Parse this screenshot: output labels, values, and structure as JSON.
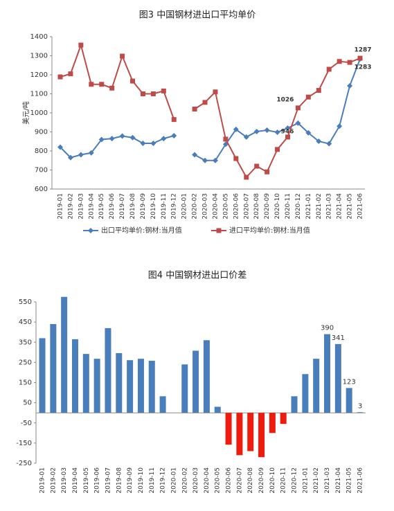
{
  "chart_data": [
    {
      "type": "line",
      "title": "图3 中国钢材进出口平均单价",
      "y_label": "美元/吨",
      "categories": [
        "2019-01",
        "2019-02",
        "2019-03",
        "2019-04",
        "2019-05",
        "2019-06",
        "2019-07",
        "2019-08",
        "2019-09",
        "2019-10",
        "2019-11",
        "2019-12",
        "2020-01",
        "2020-02",
        "2020-03",
        "2020-04",
        "2020-05",
        "2020-06",
        "2020-07",
        "2020-08",
        "2020-09",
        "2020-10",
        "2020-11",
        "2020-12",
        "2021-01",
        "2021-02",
        "2021-03",
        "2021-04",
        "2021-05",
        "2021-06"
      ],
      "series": [
        {
          "name": "出口平均单价:钢材:当月值",
          "color": "#4a7ebb",
          "marker": "diamond",
          "values": [
            820,
            765,
            780,
            790,
            860,
            865,
            878,
            870,
            840,
            840,
            865,
            880,
            null,
            780,
            750,
            750,
            835,
            913,
            873,
            902,
            909,
            898,
            920,
            946,
            895,
            851,
            838,
            930,
            1142,
            1283
          ],
          "value_labels": [
            null,
            null,
            null,
            null,
            null,
            null,
            null,
            null,
            null,
            null,
            null,
            null,
            null,
            null,
            null,
            null,
            null,
            null,
            null,
            null,
            null,
            null,
            null,
            "946",
            null,
            null,
            null,
            null,
            null,
            "1283"
          ]
        },
        {
          "name": "进口平均单价:钢材:当月值",
          "color": "#be4b48",
          "marker": "square",
          "values": [
            1189,
            1205,
            1356,
            1150,
            1150,
            1130,
            1298,
            1167,
            1100,
            1100,
            1115,
            965,
            null,
            1020,
            1055,
            1110,
            862,
            760,
            662,
            720,
            690,
            808,
            873,
            1026,
            1083,
            1118,
            1229,
            1270,
            1265,
            1287
          ],
          "value_labels": [
            null,
            null,
            null,
            null,
            null,
            null,
            null,
            null,
            null,
            null,
            null,
            null,
            null,
            null,
            null,
            null,
            null,
            null,
            null,
            null,
            null,
            null,
            null,
            "1026",
            null,
            null,
            null,
            null,
            null,
            "1287"
          ]
        }
      ],
      "ylim": [
        600,
        1400
      ],
      "yticks": [
        600,
        700,
        800,
        900,
        1000,
        1100,
        1200,
        1300,
        1400
      ],
      "grid": false,
      "legend": "bottom"
    },
    {
      "type": "bar",
      "title": "图4 中国钢材进出口价差",
      "categories": [
        "2019-01",
        "2019-02",
        "2019-03",
        "2019-04",
        "2019-05",
        "2019-06",
        "2019-07",
        "2019-08",
        "2019-09",
        "2019-10",
        "2019-11",
        "2019-12",
        "2020-01",
        "2020-02",
        "2020-03",
        "2020-04",
        "2020-05",
        "2020-06",
        "2020-07",
        "2020-08",
        "2020-09",
        "2020-10",
        "2020-11",
        "2020-12",
        "2021-01",
        "2021-02",
        "2021-03",
        "2021-04",
        "2021-05",
        "2021-06"
      ],
      "values": [
        370,
        440,
        575,
        365,
        292,
        268,
        420,
        296,
        261,
        268,
        258,
        82,
        null,
        240,
        308,
        360,
        30,
        -158,
        -210,
        -190,
        -220,
        -100,
        -55,
        82,
        192,
        268,
        390,
        341,
        123,
        3
      ],
      "value_labels": [
        null,
        null,
        null,
        null,
        null,
        null,
        null,
        null,
        null,
        null,
        null,
        null,
        null,
        null,
        null,
        null,
        null,
        null,
        null,
        null,
        null,
        null,
        null,
        null,
        null,
        null,
        "390",
        "341",
        "123",
        "3"
      ],
      "color": "#4a7ebb",
      "negative_color": "#ee1c0f",
      "ylim": [
        -250,
        550
      ],
      "yticks": [
        -250,
        -150,
        -50,
        50,
        150,
        250,
        350,
        450,
        550
      ],
      "grid": false
    }
  ]
}
